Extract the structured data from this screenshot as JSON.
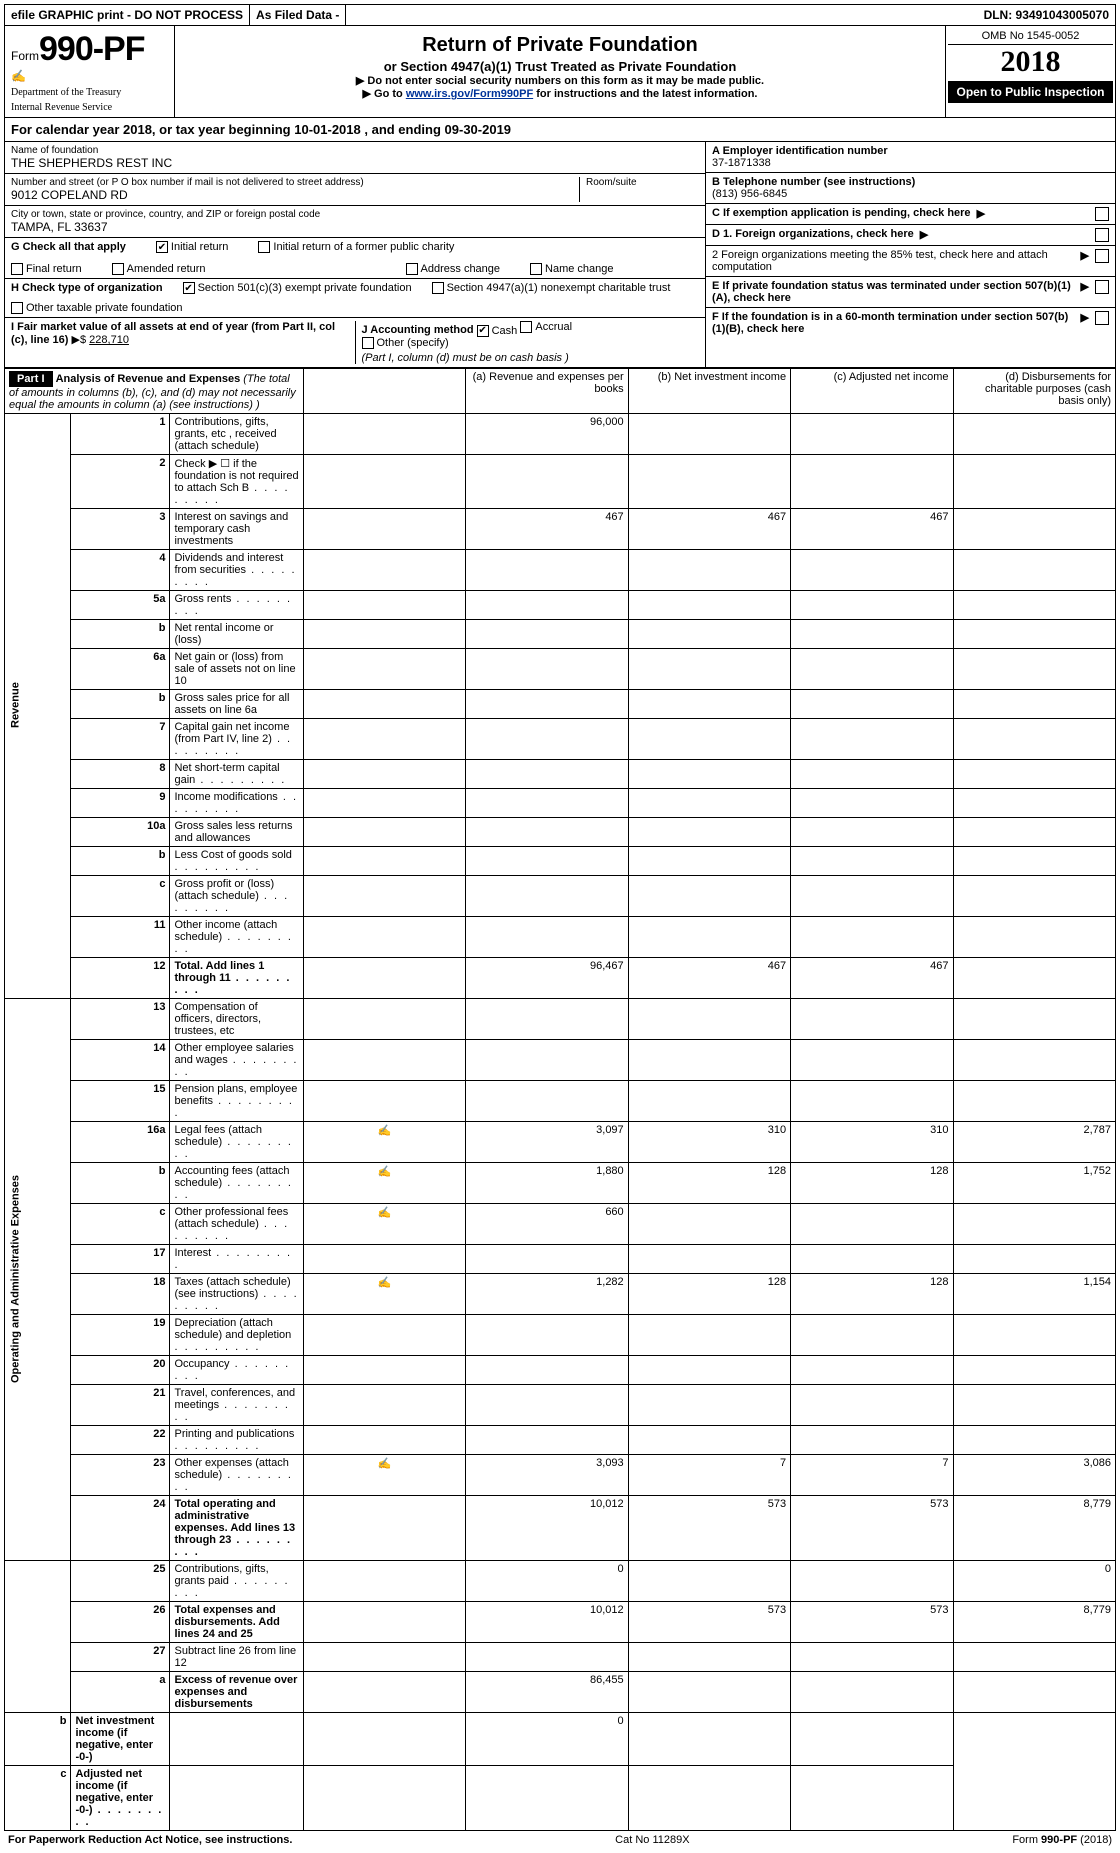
{
  "topBar": {
    "efile": "efile GRAPHIC print - DO NOT PROCESS",
    "asFiled": "As Filed Data -",
    "dln": "DLN: 93491043005070"
  },
  "header": {
    "formWord": "Form",
    "formNum": "990-PF",
    "dept1": "Department of the Treasury",
    "dept2": "Internal Revenue Service",
    "title": "Return of Private Foundation",
    "subtitle": "or Section 4947(a)(1) Trust Treated as Private Foundation",
    "note1": "▶ Do not enter social security numbers on this form as it may be made public.",
    "note2a": "▶ Go to ",
    "note2link": "www.irs.gov/Form990PF",
    "note2b": " for instructions and the latest information.",
    "omb": "OMB No 1545-0052",
    "year": "2018",
    "badge": "Open to Public Inspection"
  },
  "calYear": {
    "prefix": "For calendar year 2018, or tax year beginning ",
    "begin": "10-01-2018",
    "mid": ", and ending ",
    "end": "09-30-2019"
  },
  "info": {
    "nameLbl": "Name of foundation",
    "name": "THE SHEPHERDS REST INC",
    "addrLbl": "Number and street (or P O  box number if mail is not delivered to street address)",
    "addr": "9012 COPELAND RD",
    "roomLbl": "Room/suite",
    "cityLbl": "City or town, state or province, country, and ZIP or foreign postal code",
    "city": "TAMPA, FL  33637",
    "einLbl": "A Employer identification number",
    "ein": "37-1871338",
    "telLbl": "B Telephone number (see instructions)",
    "tel": "(813) 956-6845",
    "cLbl": "C If exemption application is pending, check here",
    "d1": "D 1. Foreign organizations, check here",
    "d2": "2 Foreign organizations meeting the 85% test, check here and attach computation",
    "eLbl": "E  If private foundation status was terminated under section 507(b)(1)(A), check here",
    "fLbl": "F  If the foundation is in a 60-month termination under section 507(b)(1)(B), check here"
  },
  "checksG": {
    "label": "G Check all that apply",
    "initial": "Initial return",
    "initialFormer": "Initial return of a former public charity",
    "final": "Final return",
    "amended": "Amended return",
    "addrChange": "Address change",
    "nameChange": "Name change"
  },
  "checksH": {
    "label": "H Check type of organization",
    "s501c3": "Section 501(c)(3) exempt private foundation",
    "s4947": "Section 4947(a)(1) nonexempt charitable trust",
    "other": "Other taxable private foundation"
  },
  "rowI": {
    "label": "I Fair market value of all assets at end of year (from Part II, col  (c), line 16)",
    "arrow": "▶$",
    "value": "228,710"
  },
  "rowJ": {
    "label": "J Accounting method",
    "cash": "Cash",
    "accrual": "Accrual",
    "other": "Other (specify)",
    "note": "(Part I, column (d) must be on cash basis )"
  },
  "part1": {
    "badge": "Part I",
    "title": "Analysis of Revenue and Expenses",
    "titleNote": " (The total of amounts in columns (b), (c), and (d) may not necessarily equal the amounts in column (a) (see instructions) )",
    "colA": "(a) Revenue and expenses per books",
    "colB": "(b) Net investment income",
    "colC": "(c) Adjusted net income",
    "colD": "(d) Disbursements for charitable purposes (cash basis only)",
    "revLabel": "Revenue",
    "expLabel": "Operating and Administrative Expenses"
  },
  "rows": [
    {
      "n": "1",
      "d": "Contributions, gifts, grants, etc , received (attach schedule)",
      "a": "96,000",
      "b": "",
      "c": "",
      "dd": ""
    },
    {
      "n": "2",
      "d": "Check ▶ ☐ if the foundation is not required to attach Sch  B",
      "dots": true
    },
    {
      "n": "3",
      "d": "Interest on savings and temporary cash investments",
      "a": "467",
      "b": "467",
      "c": "467",
      "dd": ""
    },
    {
      "n": "4",
      "d": "Dividends and interest from securities",
      "dots": true
    },
    {
      "n": "5a",
      "d": "Gross rents",
      "dots": true
    },
    {
      "n": "b",
      "d": "Net rental income or (loss)"
    },
    {
      "n": "6a",
      "d": "Net gain or (loss) from sale of assets not on line 10"
    },
    {
      "n": "b",
      "d": "Gross sales price for all assets on line 6a"
    },
    {
      "n": "7",
      "d": "Capital gain net income (from Part IV, line 2)",
      "dots": true
    },
    {
      "n": "8",
      "d": "Net short-term capital gain",
      "dots": true
    },
    {
      "n": "9",
      "d": "Income modifications",
      "dots": true
    },
    {
      "n": "10a",
      "d": "Gross sales less returns and allowances"
    },
    {
      "n": "b",
      "d": "Less  Cost of goods sold",
      "dots": true
    },
    {
      "n": "c",
      "d": "Gross profit or (loss) (attach schedule)",
      "dots": true
    },
    {
      "n": "11",
      "d": "Other income (attach schedule)",
      "dots": true
    },
    {
      "n": "12",
      "d": "Total. Add lines 1 through 11",
      "bold": true,
      "dots": true,
      "a": "96,467",
      "b": "467",
      "c": "467",
      "dd": ""
    },
    {
      "n": "13",
      "d": "Compensation of officers, directors, trustees, etc"
    },
    {
      "n": "14",
      "d": "Other employee salaries and wages",
      "dots": true
    },
    {
      "n": "15",
      "d": "Pension plans, employee benefits",
      "dots": true
    },
    {
      "n": "16a",
      "d": "Legal fees (attach schedule)",
      "icon": true,
      "dots": true,
      "a": "3,097",
      "b": "310",
      "c": "310",
      "dd": "2,787"
    },
    {
      "n": "b",
      "d": "Accounting fees (attach schedule)",
      "icon": true,
      "dots": true,
      "a": "1,880",
      "b": "128",
      "c": "128",
      "dd": "1,752"
    },
    {
      "n": "c",
      "d": "Other professional fees (attach schedule)",
      "icon": true,
      "dots": true,
      "a": "660",
      "b": "",
      "c": "",
      "dd": ""
    },
    {
      "n": "17",
      "d": "Interest",
      "dots": true
    },
    {
      "n": "18",
      "d": "Taxes (attach schedule) (see instructions)",
      "icon": true,
      "dots": true,
      "a": "1,282",
      "b": "128",
      "c": "128",
      "dd": "1,154"
    },
    {
      "n": "19",
      "d": "Depreciation (attach schedule) and depletion",
      "dots": true
    },
    {
      "n": "20",
      "d": "Occupancy",
      "dots": true
    },
    {
      "n": "21",
      "d": "Travel, conferences, and meetings",
      "dots": true
    },
    {
      "n": "22",
      "d": "Printing and publications",
      "dots": true
    },
    {
      "n": "23",
      "d": "Other expenses (attach schedule)",
      "icon": true,
      "dots": true,
      "a": "3,093",
      "b": "7",
      "c": "7",
      "dd": "3,086"
    },
    {
      "n": "24",
      "d": "Total operating and administrative expenses. Add lines 13 through 23",
      "bold": true,
      "dots": true,
      "a": "10,012",
      "b": "573",
      "c": "573",
      "dd": "8,779"
    },
    {
      "n": "25",
      "d": "Contributions, gifts, grants paid",
      "dots": true,
      "a": "0",
      "b": "",
      "c": "",
      "dd": "0"
    },
    {
      "n": "26",
      "d": "Total expenses and disbursements. Add lines 24 and 25",
      "bold": true,
      "a": "10,012",
      "b": "573",
      "c": "573",
      "dd": "8,779"
    },
    {
      "n": "27",
      "d": "Subtract line 26 from line 12"
    },
    {
      "n": "a",
      "d": "Excess of revenue over expenses and disbursements",
      "bold": true,
      "a": "86,455",
      "b": "",
      "c": "",
      "dd": ""
    },
    {
      "n": "b",
      "d": "Net investment income (if negative, enter -0-)",
      "bold": true,
      "a": "",
      "b": "0",
      "c": "",
      "dd": ""
    },
    {
      "n": "c",
      "d": "Adjusted net income (if negative, enter -0-)",
      "bold": true,
      "dots": true
    }
  ],
  "footer": {
    "left": "For Paperwork Reduction Act Notice, see instructions.",
    "center": "Cat  No  11289X",
    "right": "Form 990-PF (2018)"
  },
  "colors": {
    "border": "#000000",
    "headerBg": "#000000",
    "headerFg": "#ffffff",
    "link": "#003399"
  }
}
